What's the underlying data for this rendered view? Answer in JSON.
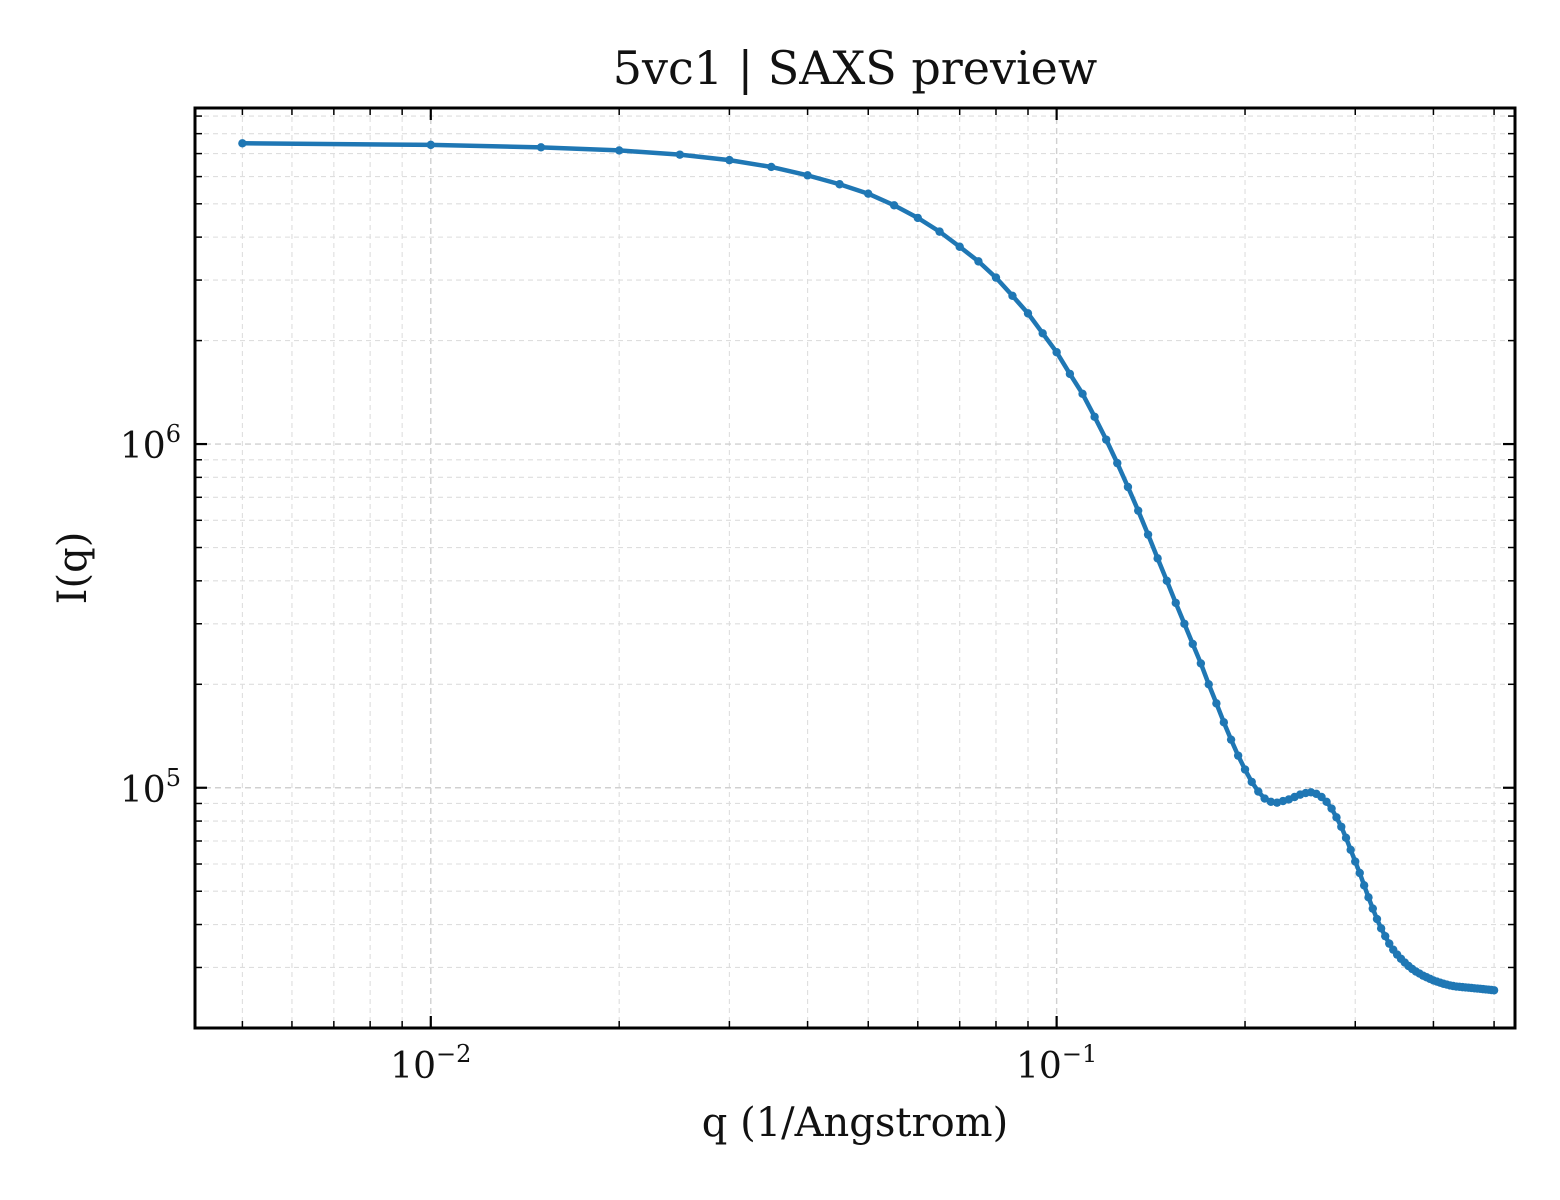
{
  "chart_data": {
    "type": "line",
    "title": "5vc1 | SAXS preview",
    "xlabel": "q (1/Angstrom)",
    "ylabel": "I(q)",
    "xscale": "log",
    "yscale": "log",
    "xlim": [
      0.0042,
      0.54
    ],
    "ylim": [
      20000,
      9500000
    ],
    "x_ticks": [
      {
        "value": 0.01,
        "base": "10",
        "exp": "−2"
      },
      {
        "value": 0.1,
        "base": "10",
        "exp": "−1"
      }
    ],
    "y_ticks": [
      {
        "value": 100000,
        "base": "10",
        "exp": "5"
      },
      {
        "value": 1000000,
        "base": "10",
        "exp": "6"
      }
    ],
    "grid": true,
    "colors": {
      "series": "#1f77b4"
    },
    "series": [
      {
        "x": [
          0.005,
          0.01,
          0.015,
          0.02,
          0.025,
          0.03,
          0.035,
          0.04,
          0.045,
          0.05,
          0.055,
          0.06,
          0.065,
          0.07,
          0.075,
          0.08,
          0.085,
          0.09,
          0.095,
          0.1,
          0.105,
          0.11,
          0.115,
          0.12,
          0.125,
          0.13,
          0.135,
          0.14,
          0.145,
          0.15,
          0.155,
          0.16,
          0.165,
          0.17,
          0.175,
          0.18,
          0.185,
          0.19,
          0.195,
          0.2,
          0.205,
          0.21,
          0.215,
          0.22,
          0.225,
          0.23,
          0.235,
          0.24,
          0.245,
          0.25,
          0.255,
          0.26,
          0.265,
          0.27,
          0.275,
          0.28,
          0.285,
          0.29,
          0.295,
          0.3,
          0.305,
          0.31,
          0.315,
          0.32,
          0.325,
          0.33,
          0.335,
          0.34,
          0.345,
          0.35,
          0.355,
          0.36,
          0.365,
          0.37,
          0.375,
          0.38,
          0.385,
          0.39,
          0.395,
          0.4,
          0.405,
          0.41,
          0.415,
          0.42,
          0.425,
          0.43,
          0.435,
          0.44,
          0.445,
          0.45,
          0.455,
          0.46,
          0.465,
          0.47,
          0.475,
          0.48,
          0.485,
          0.49,
          0.495,
          0.5
        ],
        "y": [
          7500000,
          7420000,
          7300000,
          7150000,
          6950000,
          6700000,
          6400000,
          6050000,
          5700000,
          5350000,
          4950000,
          4550000,
          4150000,
          3750000,
          3400000,
          3050000,
          2700000,
          2400000,
          2100000,
          1850000,
          1600000,
          1400000,
          1200000,
          1030000,
          880000,
          750000,
          640000,
          545000,
          465000,
          400000,
          345000,
          300000,
          262000,
          230000,
          200000,
          176000,
          155000,
          138000,
          124000,
          113000,
          104000,
          97500,
          93000,
          91000,
          90500,
          91500,
          92500,
          94000,
          95500,
          96500,
          97000,
          96000,
          94000,
          91000,
          87000,
          82000,
          77000,
          71500,
          66000,
          61000,
          56500,
          52000,
          48000,
          44500,
          41500,
          39000,
          37000,
          35200,
          33800,
          32700,
          31800,
          31000,
          30300,
          29700,
          29200,
          28800,
          28400,
          28100,
          27800,
          27500,
          27300,
          27100,
          26900,
          26750,
          26600,
          26500,
          26400,
          26350,
          26300,
          26250,
          26200,
          26150,
          26100,
          26050,
          26000,
          25950,
          25900,
          25850,
          25800,
          25750
        ]
      }
    ]
  }
}
